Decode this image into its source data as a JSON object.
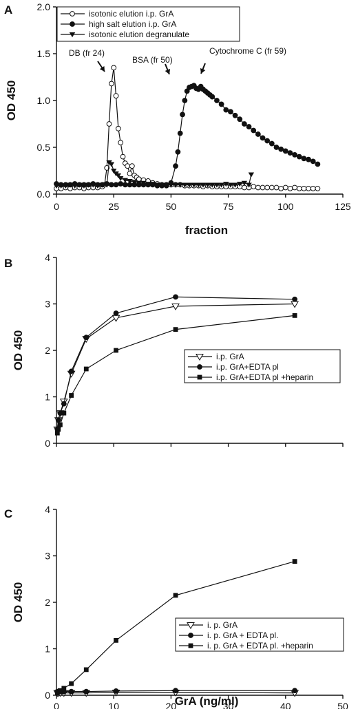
{
  "chart_data": [
    {
      "panel": "A",
      "type": "line",
      "ylabel": "OD 450",
      "xlabel": "fraction",
      "xlim": [
        0,
        125
      ],
      "ylim": [
        0,
        2.0
      ],
      "xticks": [
        "0",
        "25",
        "50",
        "75",
        "100",
        "125"
      ],
      "yticks": [
        "0.0",
        "0.5",
        "1.0",
        "1.5",
        "2.0"
      ],
      "legend_position": "top-left",
      "annotations": [
        {
          "text": "DB (fr 24)",
          "x": 24
        },
        {
          "text": "BSA (fr 50)",
          "x": 50
        },
        {
          "text": "Cytochrome C (fr 59)",
          "x": 59
        }
      ],
      "series": [
        {
          "name": "isotonic elution i.p. GrA",
          "marker": "open-circle",
          "x": [
            0,
            2,
            4,
            6,
            8,
            10,
            12,
            14,
            16,
            18,
            20,
            21,
            22,
            23,
            24,
            25,
            26,
            27,
            28,
            29,
            30,
            31,
            32,
            33,
            34,
            35,
            36,
            38,
            40,
            42,
            44,
            46,
            48,
            50,
            52,
            54,
            56,
            58,
            60,
            62,
            64,
            66,
            68,
            70,
            72,
            74,
            76,
            78,
            80,
            82,
            84,
            86,
            88,
            90,
            92,
            94,
            96,
            98,
            100,
            102,
            104,
            106,
            108,
            110,
            112,
            114
          ],
          "y": [
            0.06,
            0.06,
            0.07,
            0.06,
            0.07,
            0.07,
            0.06,
            0.07,
            0.07,
            0.07,
            0.08,
            0.1,
            0.28,
            0.75,
            1.18,
            1.35,
            1.05,
            0.7,
            0.55,
            0.4,
            0.33,
            0.3,
            0.22,
            0.3,
            0.2,
            0.18,
            0.16,
            0.15,
            0.14,
            0.12,
            0.11,
            0.1,
            0.1,
            0.1,
            0.1,
            0.1,
            0.09,
            0.09,
            0.09,
            0.09,
            0.08,
            0.09,
            0.08,
            0.08,
            0.08,
            0.08,
            0.08,
            0.08,
            0.08,
            0.07,
            0.07,
            0.08,
            0.07,
            0.07,
            0.07,
            0.07,
            0.07,
            0.06,
            0.07,
            0.06,
            0.07,
            0.06,
            0.06,
            0.06,
            0.06,
            0.06
          ]
        },
        {
          "name": "high salt elution i.p. GrA",
          "marker": "filled-circle",
          "x": [
            0,
            2,
            4,
            6,
            8,
            10,
            12,
            14,
            16,
            18,
            20,
            22,
            24,
            26,
            28,
            30,
            32,
            34,
            36,
            38,
            40,
            42,
            44,
            46,
            48,
            50,
            52,
            53,
            54,
            55,
            56,
            57,
            58,
            59,
            60,
            61,
            62,
            63,
            64,
            65,
            66,
            67,
            68,
            70,
            72,
            74,
            76,
            78,
            80,
            82,
            84,
            86,
            88,
            90,
            92,
            94,
            96,
            98,
            100,
            102,
            104,
            106,
            108,
            110,
            112,
            114
          ],
          "y": [
            0.11,
            0.1,
            0.1,
            0.1,
            0.11,
            0.1,
            0.1,
            0.1,
            0.11,
            0.1,
            0.1,
            0.11,
            0.1,
            0.1,
            0.11,
            0.1,
            0.1,
            0.1,
            0.1,
            0.1,
            0.1,
            0.1,
            0.09,
            0.09,
            0.09,
            0.12,
            0.3,
            0.45,
            0.65,
            0.85,
            1.0,
            1.1,
            1.14,
            1.15,
            1.16,
            1.13,
            1.12,
            1.15,
            1.12,
            1.1,
            1.08,
            1.06,
            1.04,
            1.0,
            0.96,
            0.9,
            0.88,
            0.84,
            0.8,
            0.75,
            0.72,
            0.68,
            0.64,
            0.6,
            0.57,
            0.54,
            0.5,
            0.48,
            0.46,
            0.44,
            0.42,
            0.4,
            0.38,
            0.37,
            0.35,
            0.32
          ]
        },
        {
          "name": "isotonic elution degranulate",
          "marker": "filled-triangle-down",
          "x": [
            0,
            2,
            4,
            6,
            8,
            10,
            12,
            14,
            16,
            18,
            20,
            22,
            23,
            24,
            25,
            26,
            27,
            28,
            30,
            32,
            34,
            36,
            38,
            40,
            42,
            44,
            46,
            48,
            50,
            52,
            54,
            56,
            58,
            60,
            62,
            64,
            66,
            68,
            70,
            72,
            74,
            76,
            78,
            80,
            82,
            84,
            85
          ],
          "y": [
            0.09,
            0.09,
            0.09,
            0.1,
            0.09,
            0.1,
            0.09,
            0.1,
            0.1,
            0.09,
            0.1,
            0.1,
            0.34,
            0.32,
            0.25,
            0.22,
            0.2,
            0.17,
            0.15,
            0.14,
            0.13,
            0.12,
            0.12,
            0.11,
            0.11,
            0.1,
            0.1,
            0.1,
            0.1,
            0.1,
            0.1,
            0.1,
            0.1,
            0.1,
            0.1,
            0.1,
            0.1,
            0.1,
            0.1,
            0.1,
            0.11,
            0.1,
            0.1,
            0.11,
            0.12,
            0.1,
            0.21
          ]
        }
      ]
    },
    {
      "panel": "B",
      "type": "line",
      "ylabel": "OD 450",
      "xlabel": "",
      "xlim": [
        0,
        50
      ],
      "ylim": [
        0,
        4
      ],
      "yticks": [
        "0",
        "1",
        "2",
        "3",
        "4"
      ],
      "legend_position": "center-right",
      "series": [
        {
          "name": "i.p. GrA",
          "marker": "open-triangle-down",
          "x": [
            0.16,
            0.33,
            0.65,
            1.3,
            2.6,
            5.2,
            10.4,
            20.8,
            41.6
          ],
          "y": [
            0.3,
            0.5,
            0.65,
            0.9,
            1.5,
            2.25,
            2.7,
            2.95,
            3.0
          ]
        },
        {
          "name": "i.p. GrA+EDTA pl",
          "marker": "filled-circle",
          "x": [
            0.16,
            0.33,
            0.65,
            1.3,
            2.6,
            5.2,
            10.4,
            20.8,
            41.6
          ],
          "y": [
            0.3,
            0.5,
            0.65,
            0.85,
            1.55,
            2.28,
            2.8,
            3.15,
            3.1
          ]
        },
        {
          "name": "i.p. GrA+EDTA pl +heparin",
          "marker": "filled-square",
          "x": [
            0.16,
            0.33,
            0.65,
            1.3,
            2.6,
            5.2,
            10.4,
            20.8,
            41.6
          ],
          "y": [
            0.22,
            0.3,
            0.4,
            0.65,
            1.03,
            1.6,
            2.0,
            2.45,
            2.75
          ]
        }
      ]
    },
    {
      "panel": "C",
      "type": "line",
      "ylabel": "OD 450",
      "xlabel": "GrA (ng/ml)",
      "xlim": [
        0,
        50
      ],
      "ylim": [
        0,
        4
      ],
      "xticks": [
        "0",
        "10",
        "20",
        "30",
        "40",
        "50"
      ],
      "yticks": [
        "0",
        "1",
        "2",
        "3",
        "4"
      ],
      "legend_position": "lower-right",
      "series": [
        {
          "name": "i. p. GrA",
          "marker": "open-triangle-down",
          "x": [
            0.16,
            0.33,
            0.65,
            1.3,
            2.6,
            5.2,
            10.4,
            20.8,
            41.6
          ],
          "y": [
            0.05,
            0.05,
            0.05,
            0.05,
            0.05,
            0.05,
            0.06,
            0.06,
            0.05
          ]
        },
        {
          "name": "i. p. GrA + EDTA pl.",
          "marker": "filled-circle",
          "x": [
            0.16,
            0.33,
            0.65,
            1.3,
            2.6,
            5.2,
            10.4,
            20.8,
            41.6
          ],
          "y": [
            0.08,
            0.08,
            0.08,
            0.08,
            0.08,
            0.08,
            0.09,
            0.1,
            0.1
          ]
        },
        {
          "name": "i. p. GrA + EDTA pl. +heparin",
          "marker": "filled-square",
          "x": [
            0.16,
            0.33,
            0.65,
            1.3,
            2.6,
            5.2,
            10.4,
            20.8,
            41.6
          ],
          "y": [
            0.05,
            0.08,
            0.1,
            0.15,
            0.25,
            0.55,
            1.18,
            2.15,
            2.88
          ]
        }
      ]
    }
  ]
}
